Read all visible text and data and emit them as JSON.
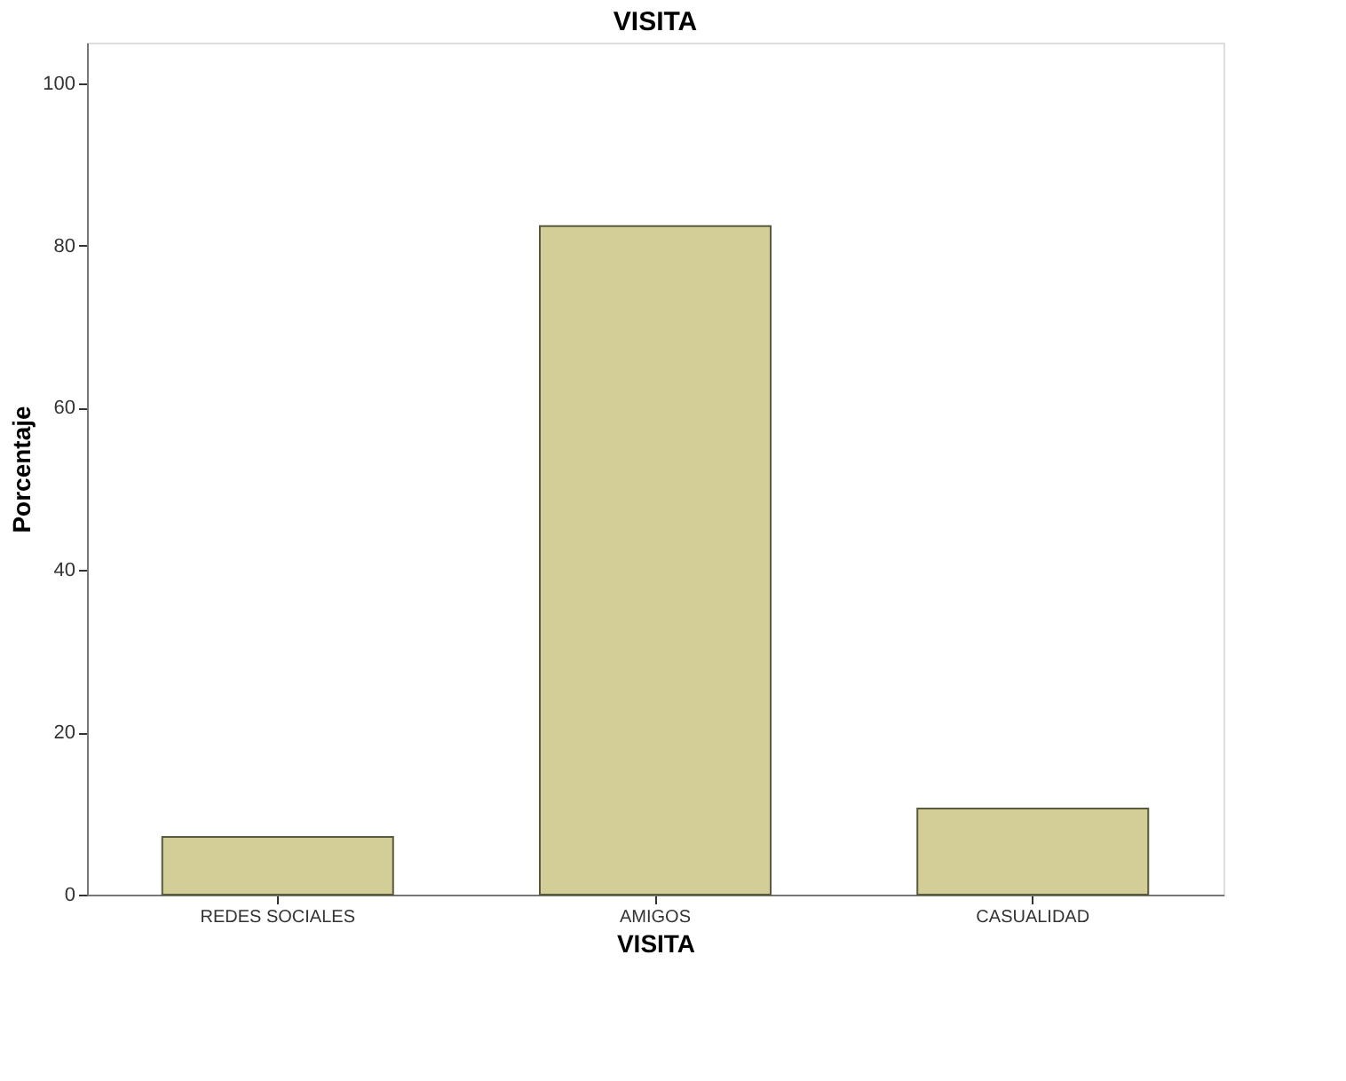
{
  "chart_data": {
    "type": "bar",
    "title": "VISITA",
    "xlabel": "VISITA",
    "ylabel": "Porcentaje",
    "categories": [
      "REDES SOCIALES",
      "AMIGOS",
      "CASUALIDAD"
    ],
    "values": [
      7.1,
      82.4,
      10.6
    ],
    "color": "#d3ce98",
    "ylim": [
      0,
      105
    ],
    "yticks": [
      0,
      20,
      40,
      60,
      80,
      100
    ],
    "grid": false
  }
}
